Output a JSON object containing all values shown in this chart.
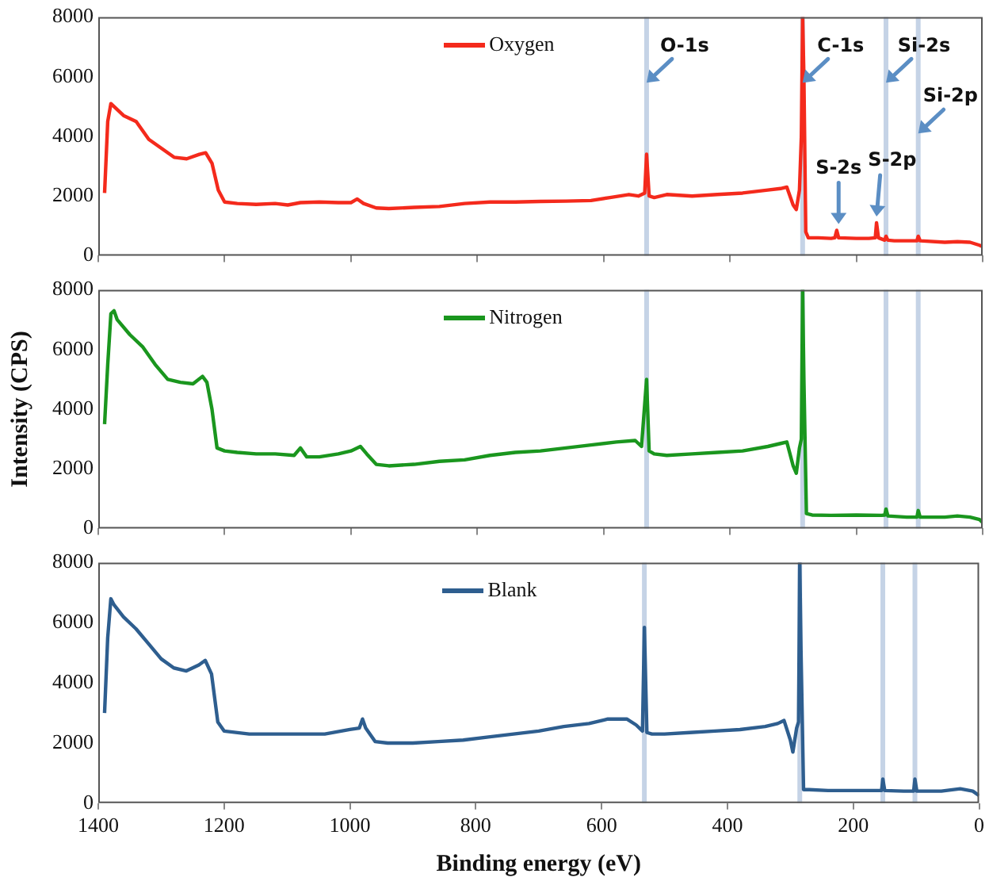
{
  "chart_data": [
    {
      "type": "line",
      "xlim": [
        1400,
        0
      ],
      "xticks": [
        1400,
        1200,
        1000,
        800,
        600,
        400,
        200,
        0
      ],
      "ylim": [
        0,
        8000
      ],
      "yticks": [
        0,
        2000,
        4000,
        6000,
        8000
      ],
      "tick_labels": "y",
      "legend": "top",
      "marker": "none",
      "x": [
        1390,
        1385,
        1380,
        1375,
        1360,
        1340,
        1320,
        1300,
        1280,
        1260,
        1240,
        1230,
        1220,
        1210,
        1200,
        1180,
        1150,
        1120,
        1100,
        1080,
        1050,
        1020,
        1000,
        990,
        980,
        960,
        940,
        900,
        860,
        820,
        780,
        740,
        700,
        660,
        620,
        590,
        560,
        545,
        535,
        532,
        528,
        520,
        500,
        460,
        420,
        380,
        340,
        320,
        310,
        300,
        295,
        290,
        287,
        285,
        283,
        280,
        276,
        260,
        240,
        234,
        231,
        228,
        200,
        180,
        170,
        168,
        165,
        155,
        153,
        150,
        140,
        120,
        104,
        102,
        99,
        60,
        40,
        20,
        5,
        0
      ],
      "series": [
        {
          "name": "Oxygen",
          "color": "#f42a1c",
          "values": [
            2100,
            4500,
            5100,
            5000,
            4700,
            4500,
            3900,
            3600,
            3300,
            3250,
            3400,
            3450,
            3100,
            2200,
            1800,
            1750,
            1720,
            1750,
            1700,
            1780,
            1800,
            1780,
            1780,
            1900,
            1750,
            1600,
            1580,
            1620,
            1650,
            1750,
            1800,
            1800,
            1820,
            1830,
            1850,
            1950,
            2050,
            2000,
            2100,
            3400,
            2000,
            1950,
            2050,
            2000,
            2050,
            2100,
            2200,
            2250,
            2300,
            1700,
            1550,
            2200,
            4000,
            8000,
            6000,
            800,
            600,
            600,
            580,
            600,
            850,
            600,
            580,
            580,
            600,
            1100,
            600,
            520,
            650,
            520,
            500,
            500,
            500,
            650,
            500,
            450,
            470,
            450,
            350,
            300
          ]
        }
      ],
      "ref_lines": [
        {
          "axis": "x",
          "value": 532,
          "color": "#c5d3e6"
        },
        {
          "axis": "x",
          "value": 285,
          "color": "#c5d3e6"
        },
        {
          "axis": "x",
          "value": 153,
          "color": "#c5d3e6"
        },
        {
          "axis": "x",
          "value": 102,
          "color": "#c5d3e6"
        }
      ],
      "annotations": [
        {
          "text": "O-1s",
          "x": 532,
          "y": 5800
        },
        {
          "text": "C-1s",
          "x": 285,
          "y": 5800
        },
        {
          "text": "Si-2s",
          "x": 153,
          "y": 5800
        },
        {
          "text": "Si-2p",
          "x": 102,
          "y": 4100
        },
        {
          "text": "S-2s",
          "x": 228,
          "y": 850
        },
        {
          "text": "S-2p",
          "x": 168,
          "y": 1100
        }
      ]
    },
    {
      "type": "line",
      "xlim": [
        1400,
        0
      ],
      "xticks": [
        1400,
        1200,
        1000,
        800,
        600,
        400,
        200,
        0
      ],
      "ylim": [
        0,
        8000
      ],
      "yticks": [
        0,
        2000,
        4000,
        6000,
        8000
      ],
      "tick_labels": "y",
      "legend": "top",
      "marker": "none",
      "ylabel": "Intensity (CPS)",
      "x": [
        1390,
        1385,
        1380,
        1375,
        1370,
        1350,
        1330,
        1310,
        1290,
        1270,
        1250,
        1235,
        1228,
        1220,
        1212,
        1200,
        1180,
        1150,
        1120,
        1090,
        1080,
        1070,
        1050,
        1020,
        1000,
        985,
        975,
        960,
        940,
        900,
        860,
        820,
        780,
        740,
        700,
        660,
        620,
        580,
        550,
        540,
        532,
        528,
        520,
        500,
        460,
        420,
        380,
        340,
        320,
        310,
        300,
        295,
        290,
        287,
        285,
        283,
        279,
        270,
        240,
        200,
        160,
        155,
        153,
        150,
        120,
        104,
        102,
        99,
        60,
        40,
        20,
        5,
        0
      ],
      "series": [
        {
          "name": "Nitrogen",
          "color": "#1a961e",
          "values": [
            3500,
            5500,
            7200,
            7300,
            7000,
            6500,
            6100,
            5500,
            5000,
            4900,
            4850,
            5100,
            4900,
            4000,
            2700,
            2600,
            2550,
            2500,
            2500,
            2450,
            2700,
            2400,
            2400,
            2500,
            2600,
            2750,
            2500,
            2150,
            2100,
            2150,
            2250,
            2300,
            2450,
            2550,
            2600,
            2700,
            2800,
            2900,
            2950,
            2750,
            5000,
            2600,
            2500,
            2450,
            2500,
            2550,
            2600,
            2750,
            2850,
            2900,
            2100,
            1850,
            2700,
            3000,
            8000,
            5000,
            500,
            450,
            440,
            450,
            440,
            450,
            650,
            420,
            380,
            380,
            600,
            380,
            380,
            420,
            380,
            300,
            200
          ]
        }
      ],
      "ref_lines": [
        {
          "axis": "x",
          "value": 532,
          "color": "#c5d3e6"
        },
        {
          "axis": "x",
          "value": 285,
          "color": "#c5d3e6"
        },
        {
          "axis": "x",
          "value": 153,
          "color": "#c5d3e6"
        },
        {
          "axis": "x",
          "value": 102,
          "color": "#c5d3e6"
        }
      ]
    },
    {
      "type": "line",
      "xlim": [
        1400,
        0
      ],
      "xticks": [
        1400,
        1200,
        1000,
        800,
        600,
        400,
        200,
        0
      ],
      "ylim": [
        0,
        8000
      ],
      "yticks": [
        0,
        2000,
        4000,
        6000,
        8000
      ],
      "legend": "top",
      "marker": "none",
      "xlabel": "Binding energy (eV)",
      "x": [
        1390,
        1385,
        1380,
        1375,
        1360,
        1340,
        1320,
        1300,
        1280,
        1260,
        1240,
        1230,
        1220,
        1210,
        1200,
        1160,
        1120,
        1080,
        1040,
        1000,
        985,
        980,
        975,
        960,
        940,
        900,
        860,
        820,
        780,
        740,
        700,
        660,
        620,
        590,
        560,
        545,
        535,
        532,
        528,
        520,
        500,
        460,
        420,
        380,
        340,
        320,
        310,
        300,
        296,
        290,
        287,
        285,
        283,
        279,
        270,
        240,
        200,
        160,
        155,
        153,
        150,
        120,
        104,
        102,
        99,
        60,
        30,
        10,
        0
      ],
      "series": [
        {
          "name": "Blank",
          "color": "#2e5e8f",
          "values": [
            3000,
            5500,
            6800,
            6600,
            6200,
            5800,
            5300,
            4800,
            4500,
            4400,
            4600,
            4750,
            4300,
            2700,
            2400,
            2300,
            2300,
            2300,
            2300,
            2450,
            2500,
            2800,
            2500,
            2050,
            2000,
            2000,
            2050,
            2100,
            2200,
            2300,
            2400,
            2550,
            2650,
            2800,
            2800,
            2600,
            2400,
            5850,
            2350,
            2300,
            2300,
            2350,
            2400,
            2450,
            2550,
            2650,
            2750,
            2100,
            1700,
            2500,
            2700,
            8000,
            5000,
            450,
            450,
            420,
            420,
            420,
            420,
            800,
            420,
            400,
            400,
            800,
            400,
            400,
            480,
            400,
            250
          ]
        }
      ],
      "ref_lines": [
        {
          "axis": "x",
          "value": 532,
          "color": "#c5d3e6"
        },
        {
          "axis": "x",
          "value": 285,
          "color": "#c5d3e6"
        },
        {
          "axis": "x",
          "value": 153,
          "color": "#c5d3e6"
        },
        {
          "axis": "x",
          "value": 102,
          "color": "#c5d3e6"
        }
      ]
    }
  ]
}
